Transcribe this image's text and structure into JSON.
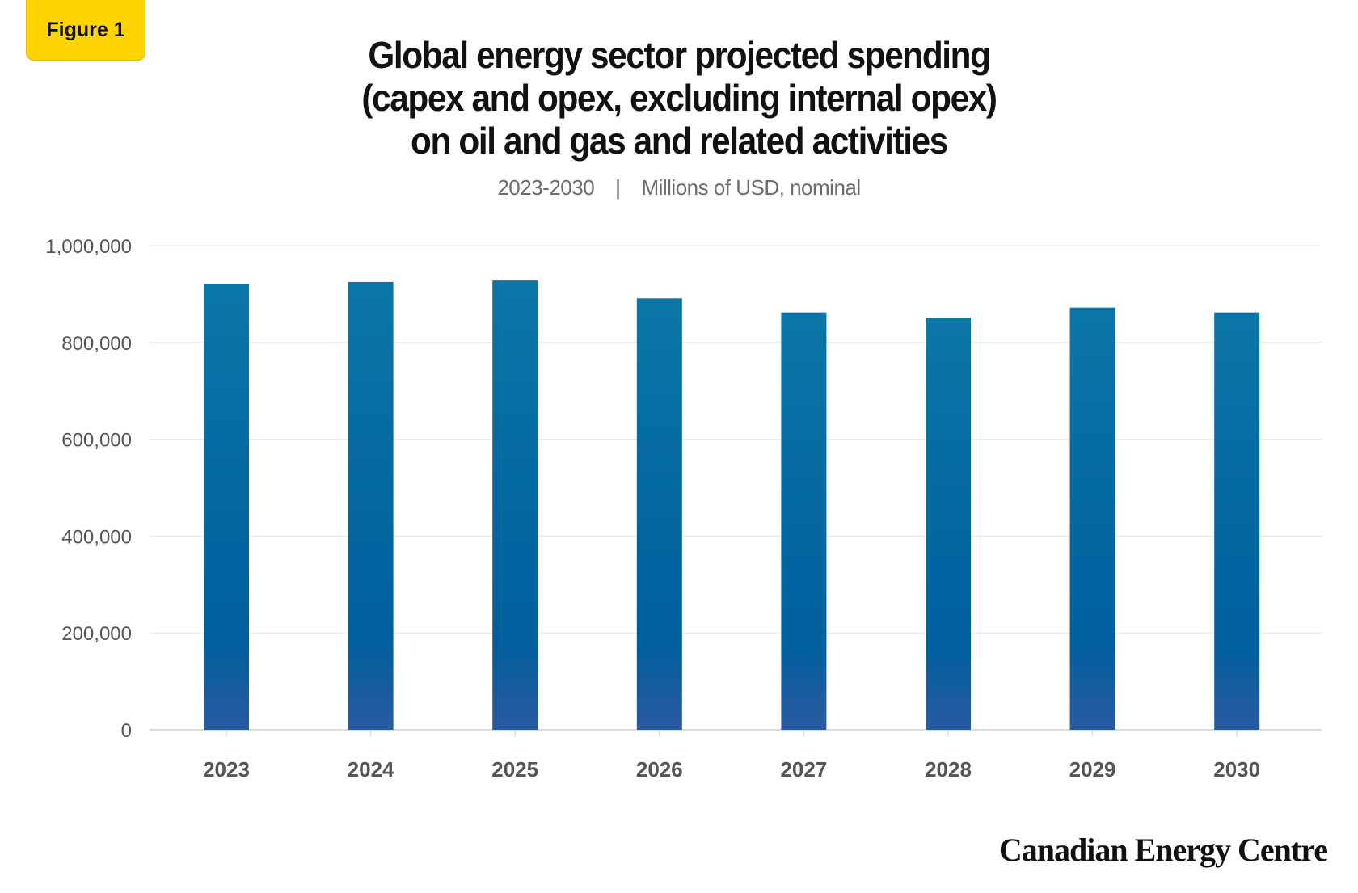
{
  "badge": "Figure 1",
  "title_lines": [
    "Global energy sector projected spending",
    "(capex and opex, excluding internal opex)",
    "on oil and gas and related activities"
  ],
  "subtitle": {
    "period": "2023-2030",
    "separator": "|",
    "units": "Millions of USD, nominal"
  },
  "brand": "Canadian Energy Centre",
  "colors": {
    "bar_top": "#0a76a6",
    "bar_mid": "#005f9e",
    "bar_bottom": "#2a5aa0",
    "grid": "#e8e8e8",
    "axis": "#dcdcdc",
    "tick_text": "#555555"
  },
  "chart_data": {
    "type": "bar",
    "title": "Global energy sector projected spending (capex and opex, excluding internal opex) on oil and gas and related activities",
    "subtitle": "2023-2030 | Millions of USD, nominal",
    "categories": [
      "2023",
      "2024",
      "2025",
      "2026",
      "2027",
      "2028",
      "2029",
      "2030"
    ],
    "values": [
      920000,
      925000,
      928000,
      891000,
      862000,
      851000,
      872000,
      862000
    ],
    "ylim": [
      0,
      1000000
    ],
    "yticks": [
      0,
      200000,
      400000,
      600000,
      800000,
      1000000
    ],
    "ytick_labels": [
      "0",
      "200,000",
      "400,000",
      "600,000",
      "800,000",
      "1,000,000"
    ],
    "xlabel": "",
    "ylabel": "",
    "grid": true,
    "legend": "none"
  }
}
